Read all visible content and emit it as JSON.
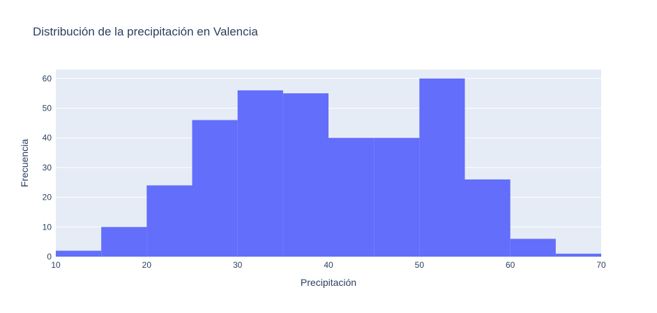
{
  "chart_data": {
    "type": "bar",
    "title": "Distribución de la precipitación en Valencia",
    "xlabel": "Precipitación",
    "ylabel": "Frecuencia",
    "bins": [
      {
        "x0": 10,
        "x1": 15,
        "count": 2
      },
      {
        "x0": 15,
        "x1": 20,
        "count": 10
      },
      {
        "x0": 20,
        "x1": 25,
        "count": 24
      },
      {
        "x0": 25,
        "x1": 30,
        "count": 46
      },
      {
        "x0": 30,
        "x1": 35,
        "count": 56
      },
      {
        "x0": 35,
        "x1": 40,
        "count": 55
      },
      {
        "x0": 40,
        "x1": 45,
        "count": 40
      },
      {
        "x0": 45,
        "x1": 50,
        "count": 40
      },
      {
        "x0": 50,
        "x1": 55,
        "count": 60
      },
      {
        "x0": 55,
        "x1": 60,
        "count": 26
      },
      {
        "x0": 60,
        "x1": 65,
        "count": 6
      },
      {
        "x0": 65,
        "x1": 70,
        "count": 1
      }
    ],
    "xlim": [
      10,
      70
    ],
    "ylim": [
      0,
      63
    ],
    "xticks": [
      10,
      20,
      30,
      40,
      50,
      60,
      70
    ],
    "yticks": [
      0,
      10,
      20,
      30,
      40,
      50,
      60
    ],
    "grid": true,
    "bar_color": "#636efa",
    "plot_bg": "#e5ecf6"
  }
}
